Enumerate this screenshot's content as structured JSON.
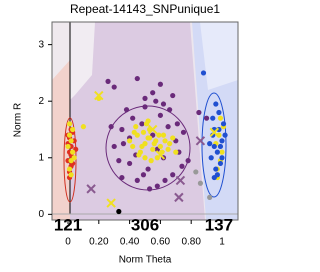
{
  "chart_data": {
    "type": "scatter",
    "title": "Repeat-14143_SNPunique1",
    "x_label": "Norm Theta",
    "y_label": "Norm R",
    "xlim": [
      -0.104,
      1.104
    ],
    "ylim": [
      -0.1,
      3.4
    ],
    "xticks": [
      0,
      {
        "value": 0.2,
        "label": "0.20"
      },
      {
        "value": 0.4,
        "label": "0.40"
      },
      {
        "value": 0.6,
        "label": "0.60"
      },
      {
        "value": 0.8,
        "label": "0.80"
      },
      1
    ],
    "yticks": [
      0,
      1,
      2,
      3
    ],
    "annotations": [
      {
        "text": "121",
        "color": "#d83a2a"
      },
      {
        "text": "306",
        "color": "#7a3a80"
      },
      {
        "text": "137",
        "color": "#2a4fd0"
      }
    ],
    "series": [
      {
        "color": "#e03020",
        "marker": "o",
        "x": [
          0.01,
          0.02,
          0.0,
          0.03,
          0.01,
          0.02,
          0.04,
          0.0,
          0.02,
          0.01,
          0.03,
          0.05,
          0.02,
          0.0,
          0.01,
          0.03
        ],
        "values": [
          0.75,
          0.85,
          0.95,
          1.0,
          1.1,
          1.2,
          1.3,
          1.4,
          1.5,
          0.65,
          0.9,
          1.15,
          1.05,
          1.25,
          1.35,
          1.45
        ]
      },
      {
        "color": "#6a2a7a",
        "marker": "o",
        "x": [
          0.3,
          0.35,
          0.4,
          0.42,
          0.45,
          0.5,
          0.52,
          0.55,
          0.58,
          0.6,
          0.62,
          0.65,
          0.68,
          0.7,
          0.72,
          0.75,
          0.78,
          0.38,
          0.33,
          0.36,
          0.48,
          0.53,
          0.57,
          0.63,
          0.66,
          0.71,
          0.44,
          0.49,
          0.26,
          0.3,
          0.45,
          0.55,
          0.6,
          0.85,
          0.9,
          0.35,
          0.5,
          0.62,
          0.4,
          0.58,
          0.74,
          0.28,
          0.68
        ],
        "values": [
          1.2,
          1.5,
          0.9,
          1.7,
          0.6,
          1.9,
          0.8,
          1.4,
          0.5,
          1.75,
          1.0,
          1.55,
          0.7,
          1.3,
          1.1,
          1.45,
          0.95,
          1.85,
          0.95,
          1.25,
          1.6,
          0.45,
          2.0,
          0.6,
          1.85,
          1.6,
          1.05,
          0.7,
          2.35,
          2.25,
          2.4,
          2.15,
          2.3,
          1.8,
          1.7,
          0.65,
          2.05,
          1.95,
          1.35,
          1.15,
          0.85,
          1.55,
          2.1
        ]
      },
      {
        "color": "#f0e020",
        "marker": "o",
        "x": [
          0.01,
          0.02,
          0.03,
          0.0,
          0.02,
          0.01,
          0.03,
          0.04,
          0.02,
          0.01,
          0.4,
          0.42,
          0.45,
          0.47,
          0.5,
          0.52,
          0.53,
          0.55,
          0.57,
          0.58,
          0.6,
          0.62,
          0.44,
          0.46,
          0.49,
          0.51,
          0.54,
          0.56,
          0.59,
          0.61,
          0.63,
          0.65,
          0.48,
          0.5,
          0.53,
          0.43,
          0.66,
          0.68,
          0.7,
          0.52,
          0.97,
          0.99,
          1.0,
          0.96,
          0.98,
          1.01,
          0.97,
          0.99,
          0.2,
          0.1
        ],
        "values": [
          0.8,
          0.95,
          1.1,
          1.2,
          1.3,
          1.4,
          1.5,
          1.0,
          0.7,
          1.6,
          1.3,
          1.2,
          1.4,
          1.1,
          1.25,
          1.35,
          1.5,
          1.15,
          1.3,
          1.0,
          1.2,
          1.4,
          1.55,
          1.05,
          1.45,
          1.6,
          0.95,
          1.25,
          1.4,
          1.1,
          1.3,
          1.15,
          1.2,
          1.0,
          1.35,
          1.45,
          1.25,
          1.35,
          1.1,
          1.65,
          0.8,
          0.95,
          1.1,
          1.25,
          1.4,
          1.55,
          0.65,
          1.7,
          2.05,
          1.55
        ]
      },
      {
        "color": "#2050d0",
        "marker": "o",
        "x": [
          0.93,
          0.95,
          0.96,
          0.98,
          0.99,
          1.0,
          1.01,
          0.94,
          0.97,
          0.95,
          0.98,
          1.0,
          0.96,
          0.94,
          0.99,
          1.02,
          0.97,
          0.95,
          0.92,
          0.88
        ],
        "values": [
          1.0,
          1.2,
          0.8,
          1.5,
          0.9,
          1.3,
          1.6,
          1.4,
          1.1,
          0.65,
          1.8,
          1.0,
          1.95,
          1.7,
          1.2,
          1.4,
          0.7,
          1.5,
          1.25,
          2.5
        ]
      },
      {
        "color": "#f0e020",
        "marker": "x",
        "x": [
          0.2,
          0.28,
          0.55,
          0.6,
          0.95
        ],
        "values": [
          2.1,
          0.2,
          1.5,
          1.05,
          1.45
        ]
      },
      {
        "color": "#8a5a90",
        "marker": "x",
        "x": [
          0.15,
          0.73,
          0.72,
          0.86
        ],
        "values": [
          0.45,
          0.6,
          0.3,
          1.3
        ]
      },
      {
        "color": "#999999",
        "marker": "o",
        "x": [
          0.83,
          0.86,
          0.92
        ],
        "values": [
          0.75,
          0.55,
          0.3
        ]
      },
      {
        "color": "#000000",
        "marker": "o",
        "x": [
          0.33
        ],
        "values": [
          0.05
        ]
      }
    ]
  }
}
